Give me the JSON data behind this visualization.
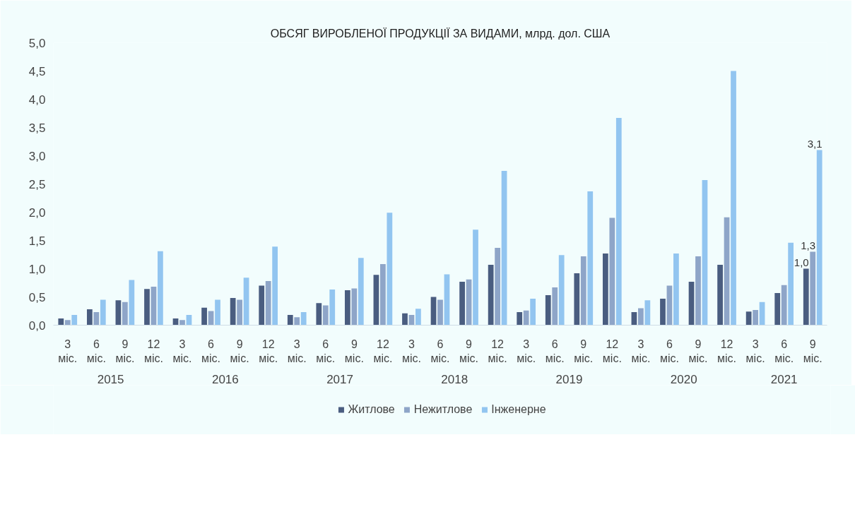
{
  "chart_data": {
    "type": "bar",
    "title": "ОБСЯГ ВИРОБЛЕНОЇ ПРОДУКЦІЇ ЗА ВИДАМИ, млрд. дол. США",
    "categories": [
      "3 міс.",
      "6 міс.",
      "9 міс.",
      "12 міс.",
      "3 міс.",
      "6 міс.",
      "9 міс.",
      "12 міс.",
      "3 міс.",
      "6 міс.",
      "9 міс.",
      "12 міс.",
      "3 міс.",
      "6 міс.",
      "9 міс.",
      "12 міс.",
      "3 міс.",
      "6 міс.",
      "9 міс.",
      "12 міс.",
      "3 міс.",
      "6 міс.",
      "9 міс.",
      "12 міс.",
      "3 міс.",
      "6 міс.",
      "9 міс."
    ],
    "annotations": [
      "2015",
      "2016",
      "2017",
      "2018",
      "2019",
      "2020",
      "2021"
    ],
    "series": [
      {
        "name": "Житлове",
        "color": "#4a5d80",
        "values": [
          0.12,
          0.28,
          0.44,
          0.64,
          0.12,
          0.31,
          0.48,
          0.7,
          0.18,
          0.39,
          0.62,
          0.89,
          0.21,
          0.5,
          0.77,
          1.07,
          0.23,
          0.53,
          0.92,
          1.27,
          0.23,
          0.47,
          0.77,
          1.07,
          0.24,
          0.57,
          1.0
        ],
        "value_labels": [
          null,
          null,
          null,
          null,
          null,
          null,
          null,
          null,
          null,
          null,
          null,
          null,
          null,
          null,
          null,
          null,
          null,
          null,
          null,
          null,
          null,
          null,
          null,
          null,
          null,
          null,
          "1,0"
        ]
      },
      {
        "name": "Нежитлове",
        "color": "#8ea5c8",
        "values": [
          0.09,
          0.23,
          0.41,
          0.68,
          0.09,
          0.25,
          0.45,
          0.78,
          0.14,
          0.35,
          0.65,
          1.08,
          0.18,
          0.45,
          0.81,
          1.37,
          0.26,
          0.67,
          1.22,
          1.9,
          0.3,
          0.7,
          1.22,
          1.91,
          0.27,
          0.71,
          1.3
        ],
        "value_labels": [
          null,
          null,
          null,
          null,
          null,
          null,
          null,
          null,
          null,
          null,
          null,
          null,
          null,
          null,
          null,
          null,
          null,
          null,
          null,
          null,
          null,
          null,
          null,
          null,
          null,
          null,
          "1,3"
        ]
      },
      {
        "name": "Інженерне",
        "color": "#92c5f0",
        "values": [
          0.18,
          0.45,
          0.8,
          1.31,
          0.18,
          0.45,
          0.84,
          1.39,
          0.23,
          0.63,
          1.19,
          1.99,
          0.29,
          0.9,
          1.69,
          2.73,
          0.47,
          1.24,
          2.37,
          3.67,
          0.44,
          1.27,
          2.57,
          4.5,
          0.41,
          1.46,
          3.1
        ],
        "value_labels": [
          null,
          null,
          null,
          null,
          null,
          null,
          null,
          null,
          null,
          null,
          null,
          null,
          null,
          null,
          null,
          null,
          null,
          null,
          null,
          null,
          null,
          null,
          null,
          null,
          null,
          null,
          "3,1"
        ]
      }
    ],
    "ylim": [
      0,
      5
    ],
    "yticks": [
      {
        "value": 0,
        "label": "0,0"
      },
      {
        "value": 0.5,
        "label": "0,5"
      },
      {
        "value": 1,
        "label": "1,0"
      },
      {
        "value": 1.5,
        "label": "1,5"
      },
      {
        "value": 2,
        "label": "2,0"
      },
      {
        "value": 2.5,
        "label": "2,5"
      },
      {
        "value": 3,
        "label": "3,0"
      },
      {
        "value": 3.5,
        "label": "3,5"
      },
      {
        "value": 4,
        "label": "4,0"
      },
      {
        "value": 4.5,
        "label": "4,5"
      },
      {
        "value": 5,
        "label": "5,0"
      }
    ],
    "grid": false,
    "legend": "bottom"
  }
}
